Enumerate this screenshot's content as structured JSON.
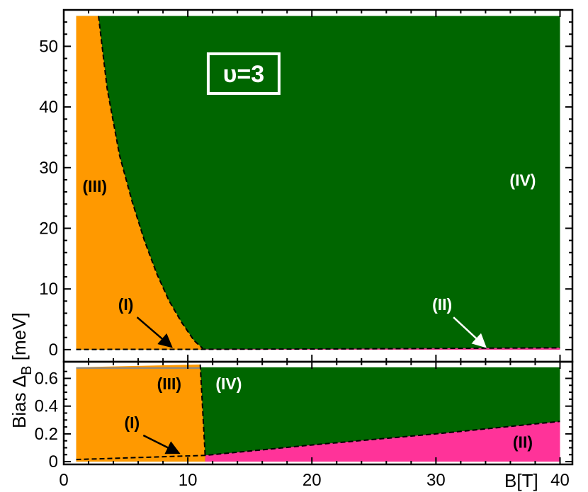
{
  "chart_data": [
    {
      "type": "area",
      "panel": "top",
      "xlim": [
        0,
        41
      ],
      "ylim": [
        -2,
        56
      ],
      "x_ticks": [
        "0",
        "10",
        "20",
        "30",
        "40"
      ],
      "y_ticks": [
        "0",
        "10",
        "20",
        "30",
        "40",
        "50"
      ],
      "annotation": "υ=3",
      "colors": {
        "III": "#ff9900",
        "IV": "#006600",
        "II": "#ff3399",
        "I": "#ff9900"
      },
      "boundary_III_IV": {
        "x": [
          2.8,
          3.5,
          4.5,
          5.5,
          6.5,
          7.5,
          8.5,
          9.5,
          10.5,
          11.2
        ],
        "y": [
          55,
          43,
          32,
          24.5,
          18,
          12.5,
          8,
          4.5,
          1.5,
          0.2
        ]
      },
      "boundary_II_top": {
        "x": [
          1,
          11,
          20,
          30,
          40
        ],
        "y": [
          0.03,
          0.05,
          0.1,
          0.2,
          0.3
        ]
      },
      "region_labels": [
        {
          "text": "(III)",
          "x": 2.5,
          "y": 26,
          "color": "#000000"
        },
        {
          "text": "(IV)",
          "x": 37,
          "y": 27,
          "color": "#ffffff"
        },
        {
          "text": "(I)",
          "x": 5,
          "y": 6.5,
          "color": "#000000",
          "arrow_to": [
            8.7,
            0.2
          ]
        },
        {
          "text": "(II)",
          "x": 30.5,
          "y": 6.5,
          "color": "#ffffff",
          "arrow_to": [
            34,
            0.2
          ]
        }
      ]
    },
    {
      "type": "area",
      "panel": "bottom",
      "xlim": [
        0,
        41
      ],
      "ylim": [
        -0.02,
        0.72
      ],
      "x_ticks": [
        "0",
        "10",
        "20",
        "30",
        "40"
      ],
      "y_ticks": [
        "0",
        "0.2",
        "0.4",
        "0.6"
      ],
      "boundary_III_IV": {
        "x": [
          11.0,
          11.4
        ],
        "y": [
          0.7,
          0.04
        ]
      },
      "boundary_II_top": {
        "x": [
          1,
          11.4,
          20,
          30,
          40
        ],
        "y": [
          0.015,
          0.045,
          0.12,
          0.2,
          0.29
        ]
      },
      "region_labels": [
        {
          "text": "(III)",
          "x": 8.5,
          "y": 0.52,
          "color": "#000000"
        },
        {
          "text": "(IV)",
          "x": 13.3,
          "y": 0.52,
          "color": "#ffffff"
        },
        {
          "text": "(I)",
          "x": 5.5,
          "y": 0.24,
          "color": "#000000",
          "arrow_to": [
            9.3,
            0.05
          ]
        },
        {
          "text": "(II)",
          "x": 37,
          "y": 0.1,
          "color": "#000000"
        }
      ]
    }
  ],
  "axes": {
    "ylabel_prefix": "Bias Δ",
    "ylabel_sub": "B",
    "ylabel_suffix": " [meV]",
    "xlabel": "B[T]"
  }
}
